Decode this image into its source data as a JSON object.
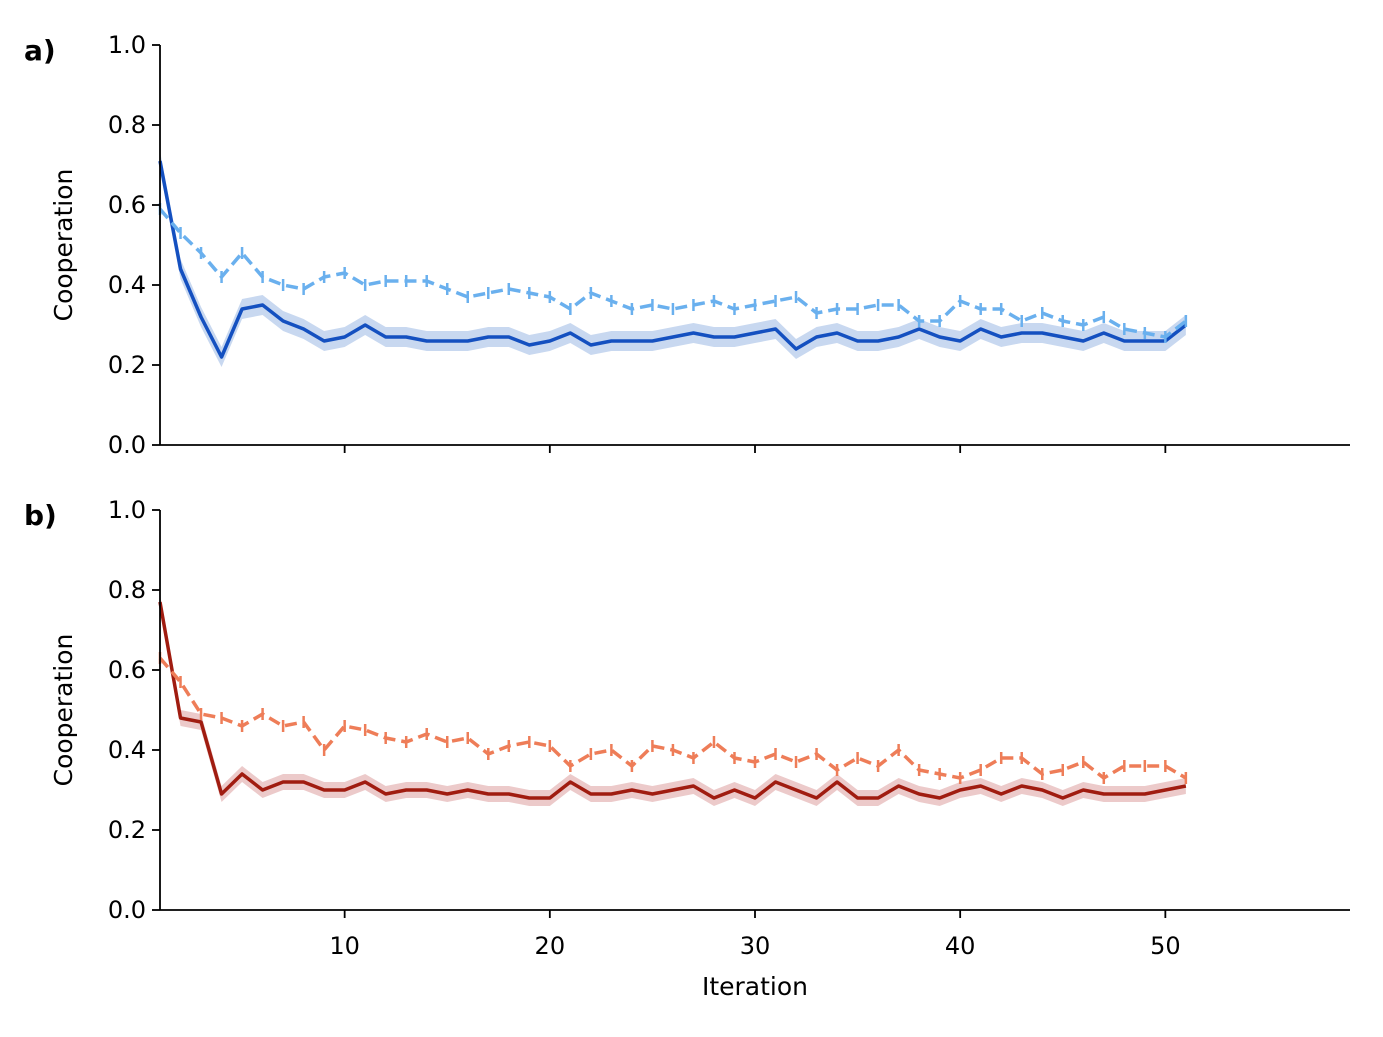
{
  "chart_data": [
    {
      "type": "line",
      "panel_label": "a)",
      "xlabel": "",
      "ylabel": "Cooperation",
      "xlim": [
        1,
        59
      ],
      "ylim": [
        0.0,
        1.0
      ],
      "xticks": [
        "10",
        "20",
        "30",
        "40",
        "50"
      ],
      "yticks": [
        "0.0",
        "0.2",
        "0.4",
        "0.6",
        "0.8",
        "1.0"
      ],
      "grid": false,
      "legend": "none",
      "x": [
        1,
        2,
        3,
        4,
        5,
        6,
        7,
        8,
        9,
        10,
        11,
        12,
        13,
        14,
        15,
        16,
        17,
        18,
        19,
        20,
        21,
        22,
        23,
        24,
        25,
        26,
        27,
        28,
        29,
        30,
        31,
        32,
        33,
        34,
        35,
        36,
        37,
        38,
        39,
        40,
        41,
        42,
        43,
        44,
        45,
        46,
        47,
        48,
        49,
        50,
        51
      ],
      "series": [
        {
          "style": "solid",
          "color": "#1450c0",
          "band_color": "#c8d8f0",
          "values": [
            0.71,
            0.44,
            0.32,
            0.22,
            0.34,
            0.35,
            0.31,
            0.29,
            0.26,
            0.27,
            0.3,
            0.27,
            0.27,
            0.26,
            0.26,
            0.26,
            0.27,
            0.27,
            0.25,
            0.26,
            0.28,
            0.25,
            0.26,
            0.26,
            0.26,
            0.27,
            0.28,
            0.27,
            0.27,
            0.28,
            0.29,
            0.24,
            0.27,
            0.28,
            0.26,
            0.26,
            0.27,
            0.29,
            0.27,
            0.26,
            0.29,
            0.27,
            0.28,
            0.28,
            0.27,
            0.26,
            0.28,
            0.26,
            0.26,
            0.26,
            0.3
          ],
          "band": 0.025
        },
        {
          "style": "dashed",
          "color": "#6ab0ee",
          "values": [
            0.59,
            0.53,
            0.48,
            0.42,
            0.48,
            0.42,
            0.4,
            0.39,
            0.42,
            0.43,
            0.4,
            0.41,
            0.41,
            0.41,
            0.39,
            0.37,
            0.38,
            0.39,
            0.38,
            0.37,
            0.34,
            0.38,
            0.36,
            0.34,
            0.35,
            0.34,
            0.35,
            0.36,
            0.34,
            0.35,
            0.36,
            0.37,
            0.33,
            0.34,
            0.34,
            0.35,
            0.35,
            0.31,
            0.31,
            0.36,
            0.34,
            0.34,
            0.31,
            0.33,
            0.31,
            0.3,
            0.32,
            0.29,
            0.28,
            0.27,
            0.31
          ],
          "err": 0.015
        }
      ]
    },
    {
      "type": "line",
      "panel_label": "b)",
      "xlabel": "Iteration",
      "ylabel": "Cooperation",
      "xlim": [
        1,
        59
      ],
      "ylim": [
        0.0,
        1.0
      ],
      "xticks": [
        "10",
        "20",
        "30",
        "40",
        "50"
      ],
      "yticks": [
        "0.0",
        "0.2",
        "0.4",
        "0.6",
        "0.8",
        "1.0"
      ],
      "grid": false,
      "legend": "none",
      "x": [
        1,
        2,
        3,
        4,
        5,
        6,
        7,
        8,
        9,
        10,
        11,
        12,
        13,
        14,
        15,
        16,
        17,
        18,
        19,
        20,
        21,
        22,
        23,
        24,
        25,
        26,
        27,
        28,
        29,
        30,
        31,
        32,
        33,
        34,
        35,
        36,
        37,
        38,
        39,
        40,
        41,
        42,
        43,
        44,
        45,
        46,
        47,
        48,
        49,
        50,
        51
      ],
      "series": [
        {
          "style": "solid",
          "color": "#a01c10",
          "band_color": "#eccaca",
          "values": [
            0.77,
            0.48,
            0.47,
            0.29,
            0.34,
            0.3,
            0.32,
            0.32,
            0.3,
            0.3,
            0.32,
            0.29,
            0.3,
            0.3,
            0.29,
            0.3,
            0.29,
            0.29,
            0.28,
            0.28,
            0.32,
            0.29,
            0.29,
            0.3,
            0.29,
            0.3,
            0.31,
            0.28,
            0.3,
            0.28,
            0.32,
            0.3,
            0.28,
            0.32,
            0.28,
            0.28,
            0.31,
            0.29,
            0.28,
            0.3,
            0.31,
            0.29,
            0.31,
            0.3,
            0.28,
            0.3,
            0.29,
            0.29,
            0.29,
            0.3,
            0.31
          ],
          "band": 0.02
        },
        {
          "style": "dashed",
          "color": "#ee7d58",
          "values": [
            0.63,
            0.57,
            0.49,
            0.48,
            0.46,
            0.49,
            0.46,
            0.47,
            0.4,
            0.46,
            0.45,
            0.43,
            0.42,
            0.44,
            0.42,
            0.43,
            0.39,
            0.41,
            0.42,
            0.41,
            0.36,
            0.39,
            0.4,
            0.36,
            0.41,
            0.4,
            0.38,
            0.42,
            0.38,
            0.37,
            0.39,
            0.37,
            0.39,
            0.35,
            0.38,
            0.36,
            0.4,
            0.35,
            0.34,
            0.33,
            0.35,
            0.38,
            0.38,
            0.34,
            0.35,
            0.37,
            0.33,
            0.36,
            0.36,
            0.36,
            0.33
          ],
          "err": 0.015
        }
      ]
    }
  ]
}
